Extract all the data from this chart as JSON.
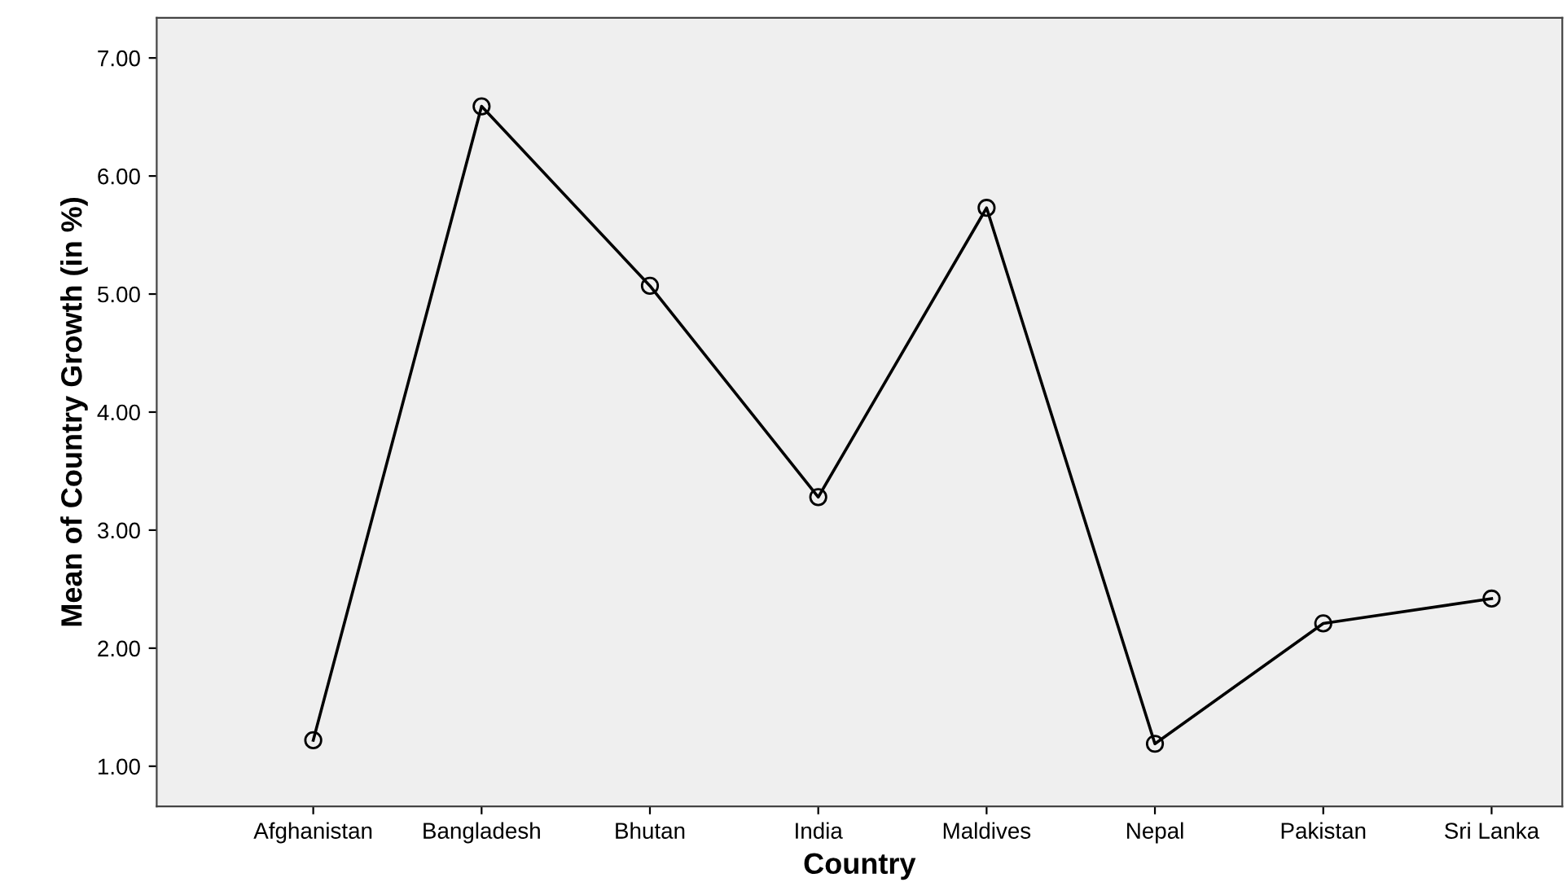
{
  "chart_data": {
    "type": "line",
    "xlabel": "Country",
    "ylabel": "Mean of Country Growth (in %)",
    "categories": [
      "Afghanistan",
      "Bangladesh",
      "Bhutan",
      "India",
      "Maldives",
      "Nepal",
      "Pakistan",
      "Sri Lanka"
    ],
    "series": [
      {
        "color": "#000000",
        "values": [
          1.22,
          6.59,
          5.07,
          3.28,
          5.73,
          1.19,
          2.21,
          2.42
        ]
      }
    ],
    "ylim": [
      0.66,
      7.34
    ],
    "yticks": [
      {
        "value": 1,
        "label": "1.00"
      },
      {
        "value": 2,
        "label": "2.00"
      },
      {
        "value": 3,
        "label": "3.00"
      },
      {
        "value": 4,
        "label": "4.00"
      },
      {
        "value": 5,
        "label": "5.00"
      },
      {
        "value": 6,
        "label": "6.00"
      },
      {
        "value": 7,
        "label": "7.00"
      }
    ],
    "grid": false,
    "legend": false,
    "marker": "circle",
    "line_style": "solid"
  }
}
